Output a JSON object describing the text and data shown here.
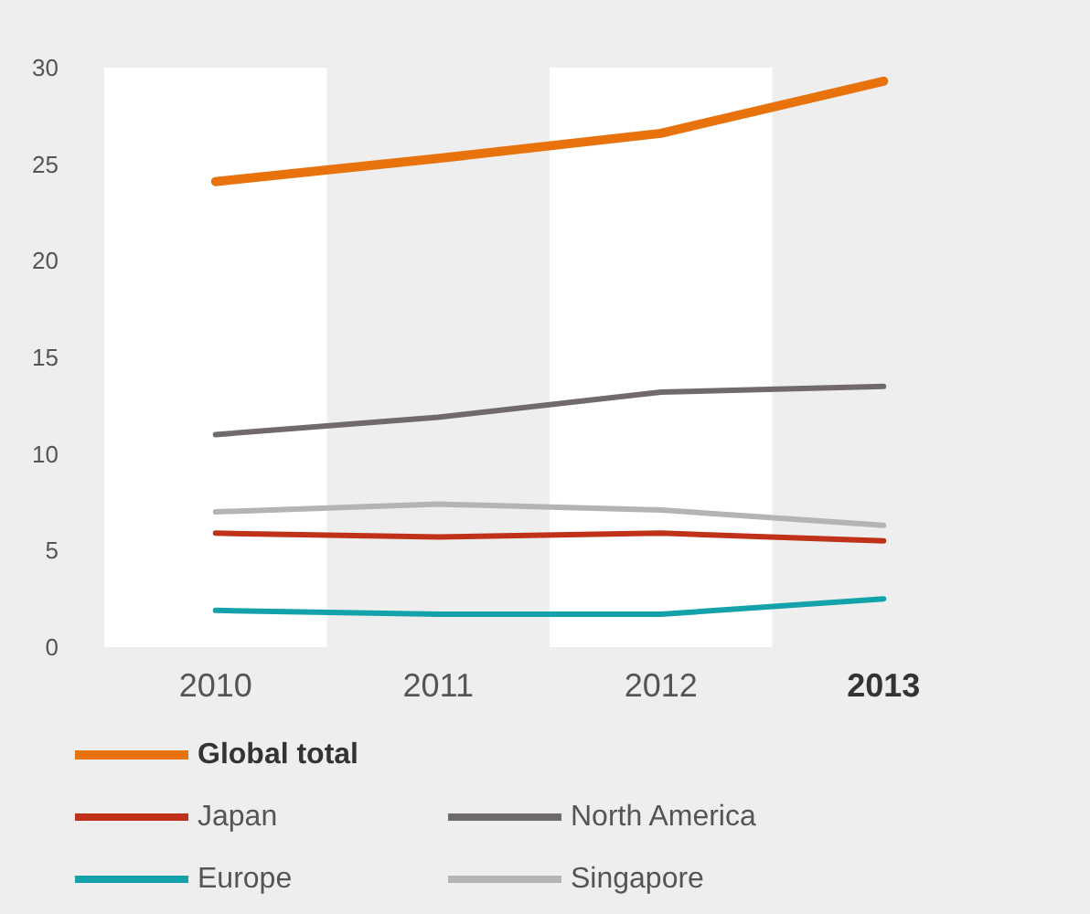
{
  "chart_data": {
    "type": "line",
    "categories": [
      "2010",
      "2011",
      "2012",
      "2013"
    ],
    "series": [
      {
        "name": "Global total",
        "color": "#e8720c",
        "values": [
          24.1,
          25.3,
          26.6,
          29.3
        ]
      },
      {
        "name": "Japan",
        "color": "#c0311a",
        "values": [
          5.9,
          5.7,
          5.9,
          5.5
        ]
      },
      {
        "name": "North America",
        "color": "#706a6b",
        "values": [
          11.0,
          11.9,
          13.2,
          13.5
        ]
      },
      {
        "name": "Europe",
        "color": "#13a2aa",
        "values": [
          1.9,
          1.7,
          1.7,
          2.5
        ]
      },
      {
        "name": "Singapore",
        "color": "#b5b4b4",
        "values": [
          7.0,
          7.4,
          7.1,
          6.3
        ]
      }
    ],
    "ylim": [
      0,
      30
    ],
    "yticks": [
      0,
      5,
      10,
      15,
      20,
      25,
      30
    ],
    "grid": false,
    "legend": "bottom",
    "marker": "none",
    "line_style": "solid",
    "bands": [
      {
        "axis": "x",
        "from": "2010",
        "to": "2010",
        "color": "#ffffff"
      },
      {
        "axis": "x",
        "from": "2012",
        "to": "2012",
        "color": "#ffffff"
      }
    ]
  }
}
